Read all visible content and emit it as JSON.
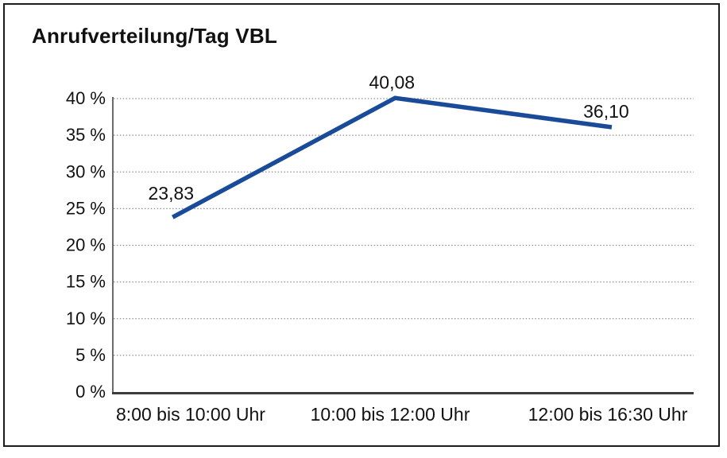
{
  "chart_data": {
    "type": "line",
    "title": "Anrufverteilung/Tag VBL",
    "categories": [
      "8:00 bis 10:00 Uhr",
      "10:00 bis 12:00 Uhr",
      "12:00 bis 16:30 Uhr"
    ],
    "values": [
      23.83,
      40.08,
      36.1
    ],
    "value_labels": [
      "23,83",
      "40,08",
      "36,10"
    ],
    "y_tick_values": [
      0,
      5,
      10,
      15,
      20,
      25,
      30,
      35,
      40
    ],
    "y_tick_labels": [
      "0 %",
      "5 %",
      "10 %",
      "15 %",
      "20 %",
      "25 %",
      "30 %",
      "35 %",
      "40 %"
    ],
    "ylim": [
      0,
      40
    ],
    "xlabel": "",
    "ylabel": "",
    "legend": "none",
    "grid": "horizontal-dotted",
    "colors": {
      "line": "#1a4b99",
      "text": "#111111",
      "grid": "#8f8f8f",
      "axis": "#3c3c3c",
      "frame": "#1c1c1c",
      "background": "#ffffff"
    }
  }
}
